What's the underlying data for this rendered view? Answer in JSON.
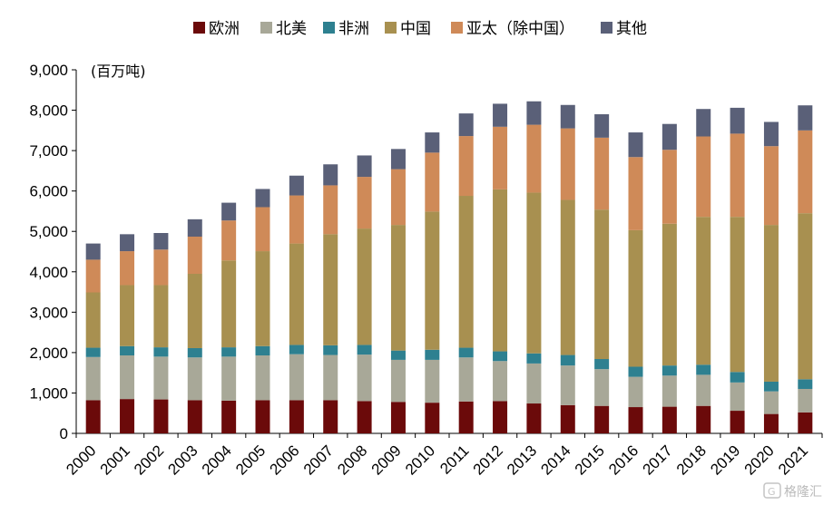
{
  "chart_data": {
    "type": "bar",
    "stacked": true,
    "unit_label": "(百万吨)",
    "categories": [
      "2000",
      "2001",
      "2002",
      "2003",
      "2004",
      "2005",
      "2006",
      "2007",
      "2008",
      "2009",
      "2010",
      "2011",
      "2012",
      "2013",
      "2014",
      "2015",
      "2016",
      "2017",
      "2018",
      "2019",
      "2020",
      "2021"
    ],
    "ylim": [
      0,
      9000
    ],
    "yticks": [
      "0",
      "1,000",
      "2,000",
      "3,000",
      "4,000",
      "5,000",
      "6,000",
      "7,000",
      "8,000",
      "9,000"
    ],
    "ytick_values": [
      0,
      1000,
      2000,
      3000,
      4000,
      5000,
      6000,
      7000,
      8000,
      9000
    ],
    "grid": false,
    "legend_position": "top",
    "series": [
      {
        "name": "欧洲",
        "color": "#6b0a0a",
        "values": [
          820,
          850,
          840,
          820,
          810,
          820,
          820,
          820,
          800,
          780,
          760,
          790,
          800,
          740,
          700,
          680,
          650,
          660,
          680,
          560,
          480,
          520
        ]
      },
      {
        "name": "北美",
        "color": "#a8a898",
        "values": [
          1070,
          1080,
          1060,
          1060,
          1090,
          1110,
          1140,
          1120,
          1150,
          1040,
          1060,
          1090,
          990,
          990,
          980,
          910,
          750,
          770,
          770,
          700,
          560,
          580
        ]
      },
      {
        "name": "非洲",
        "color": "#2e8090",
        "values": [
          230,
          230,
          230,
          230,
          230,
          230,
          230,
          240,
          240,
          230,
          250,
          240,
          240,
          250,
          260,
          250,
          250,
          250,
          250,
          260,
          240,
          240
        ]
      },
      {
        "name": "中国",
        "color": "#a89050",
        "values": [
          1370,
          1510,
          1540,
          1840,
          2150,
          2350,
          2510,
          2750,
          2880,
          3110,
          3420,
          3760,
          4010,
          3980,
          3840,
          3700,
          3380,
          3510,
          3660,
          3840,
          3880,
          4110
        ]
      },
      {
        "name": "亚太（除中国）",
        "color": "#cf8a58",
        "values": [
          810,
          840,
          880,
          920,
          990,
          1090,
          1190,
          1210,
          1280,
          1380,
          1460,
          1480,
          1550,
          1680,
          1770,
          1780,
          1810,
          1830,
          1990,
          2060,
          1950,
          2050
        ]
      },
      {
        "name": "其他",
        "color": "#5a6078",
        "values": [
          400,
          420,
          410,
          430,
          440,
          450,
          490,
          520,
          530,
          500,
          500,
          560,
          570,
          580,
          580,
          580,
          610,
          640,
          680,
          640,
          600,
          620
        ]
      }
    ]
  },
  "watermark": {
    "text": "格隆汇"
  }
}
